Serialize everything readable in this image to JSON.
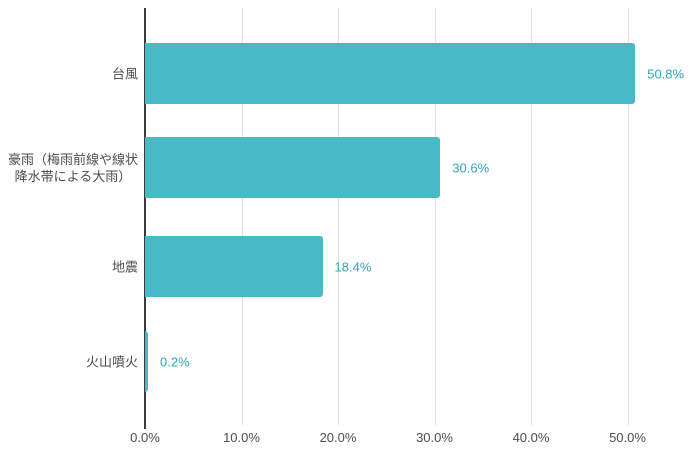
{
  "chart_data": {
    "type": "bar",
    "orientation": "horizontal",
    "title": "",
    "xlabel": "",
    "ylabel": "",
    "categories": [
      "台風",
      "豪雨（梅雨前線や線状\n降水帯による大雨）",
      "地震",
      "火山噴火"
    ],
    "values": [
      50.8,
      30.6,
      18.4,
      0.2
    ],
    "value_labels": [
      "50.8%",
      "30.6%",
      "18.4%",
      "0.2%"
    ],
    "x_ticks": [
      "0.0%",
      "10.0%",
      "20.0%",
      "30.0%",
      "40.0%",
      "50.0%"
    ],
    "x_tick_values": [
      0,
      10,
      20,
      30,
      40,
      50
    ],
    "xlim": [
      0,
      55
    ],
    "grid": true,
    "legend": "none",
    "colors": {
      "bar": "#47BAC5",
      "value_label": "#2BA8B8",
      "category_label": "#4D4D4D",
      "tick_label": "#4D4D4D",
      "gridline": "#E0E0E0",
      "axis_line": "#3B3B3B",
      "background": "#FFFFFF"
    }
  }
}
